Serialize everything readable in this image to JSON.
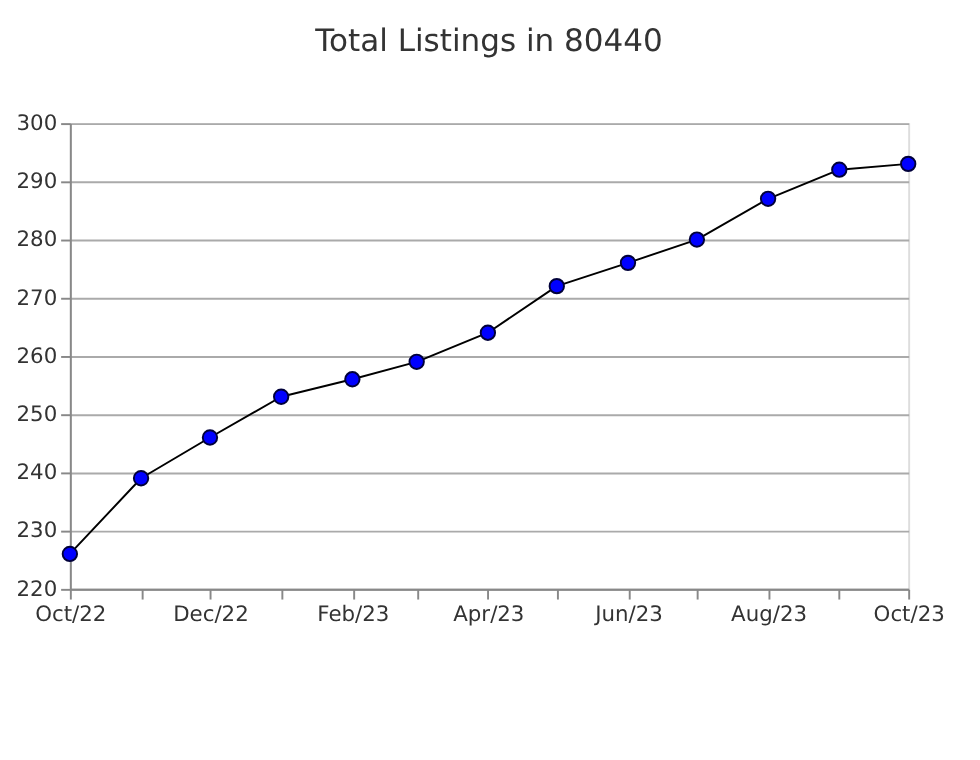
{
  "chart_data": {
    "type": "line",
    "title": "Total Listings in 80440",
    "x": [
      "2022-10",
      "2022-11",
      "2022-12",
      "2023-01",
      "2023-02",
      "2023-03",
      "2023-04",
      "2023-05",
      "2023-06",
      "2023-07",
      "2023-08",
      "2023-09",
      "2023-10"
    ],
    "series": [
      {
        "color": "#0000ff",
        "values": [
          226,
          239,
          246,
          253,
          256,
          259,
          264,
          272,
          276,
          280,
          287,
          292,
          293
        ]
      }
    ],
    "xlim": [
      "2022-10",
      "2023-10"
    ],
    "xticks": [
      {
        "value": "2022-10",
        "label": "Oct/22"
      },
      {
        "value": "2022-11",
        "label": null
      },
      {
        "value": "2022-12",
        "label": "Dec/22"
      },
      {
        "value": "2023-01",
        "label": null
      },
      {
        "value": "2023-02",
        "label": "Feb/23"
      },
      {
        "value": "2023-03",
        "label": null
      },
      {
        "value": "2023-04",
        "label": "Apr/23"
      },
      {
        "value": "2023-05",
        "label": null
      },
      {
        "value": "2023-06",
        "label": "Jun/23"
      },
      {
        "value": "2023-07",
        "label": null
      },
      {
        "value": "2023-08",
        "label": "Aug/23"
      },
      {
        "value": "2023-09",
        "label": null
      },
      {
        "value": "2023-10",
        "label": "Oct/23"
      }
    ],
    "ylim": [
      220,
      300
    ],
    "yticks": [
      220,
      230,
      240,
      250,
      260,
      270,
      280,
      290,
      300
    ],
    "grid": "y",
    "marker": "circle",
    "line_style": "solid"
  }
}
